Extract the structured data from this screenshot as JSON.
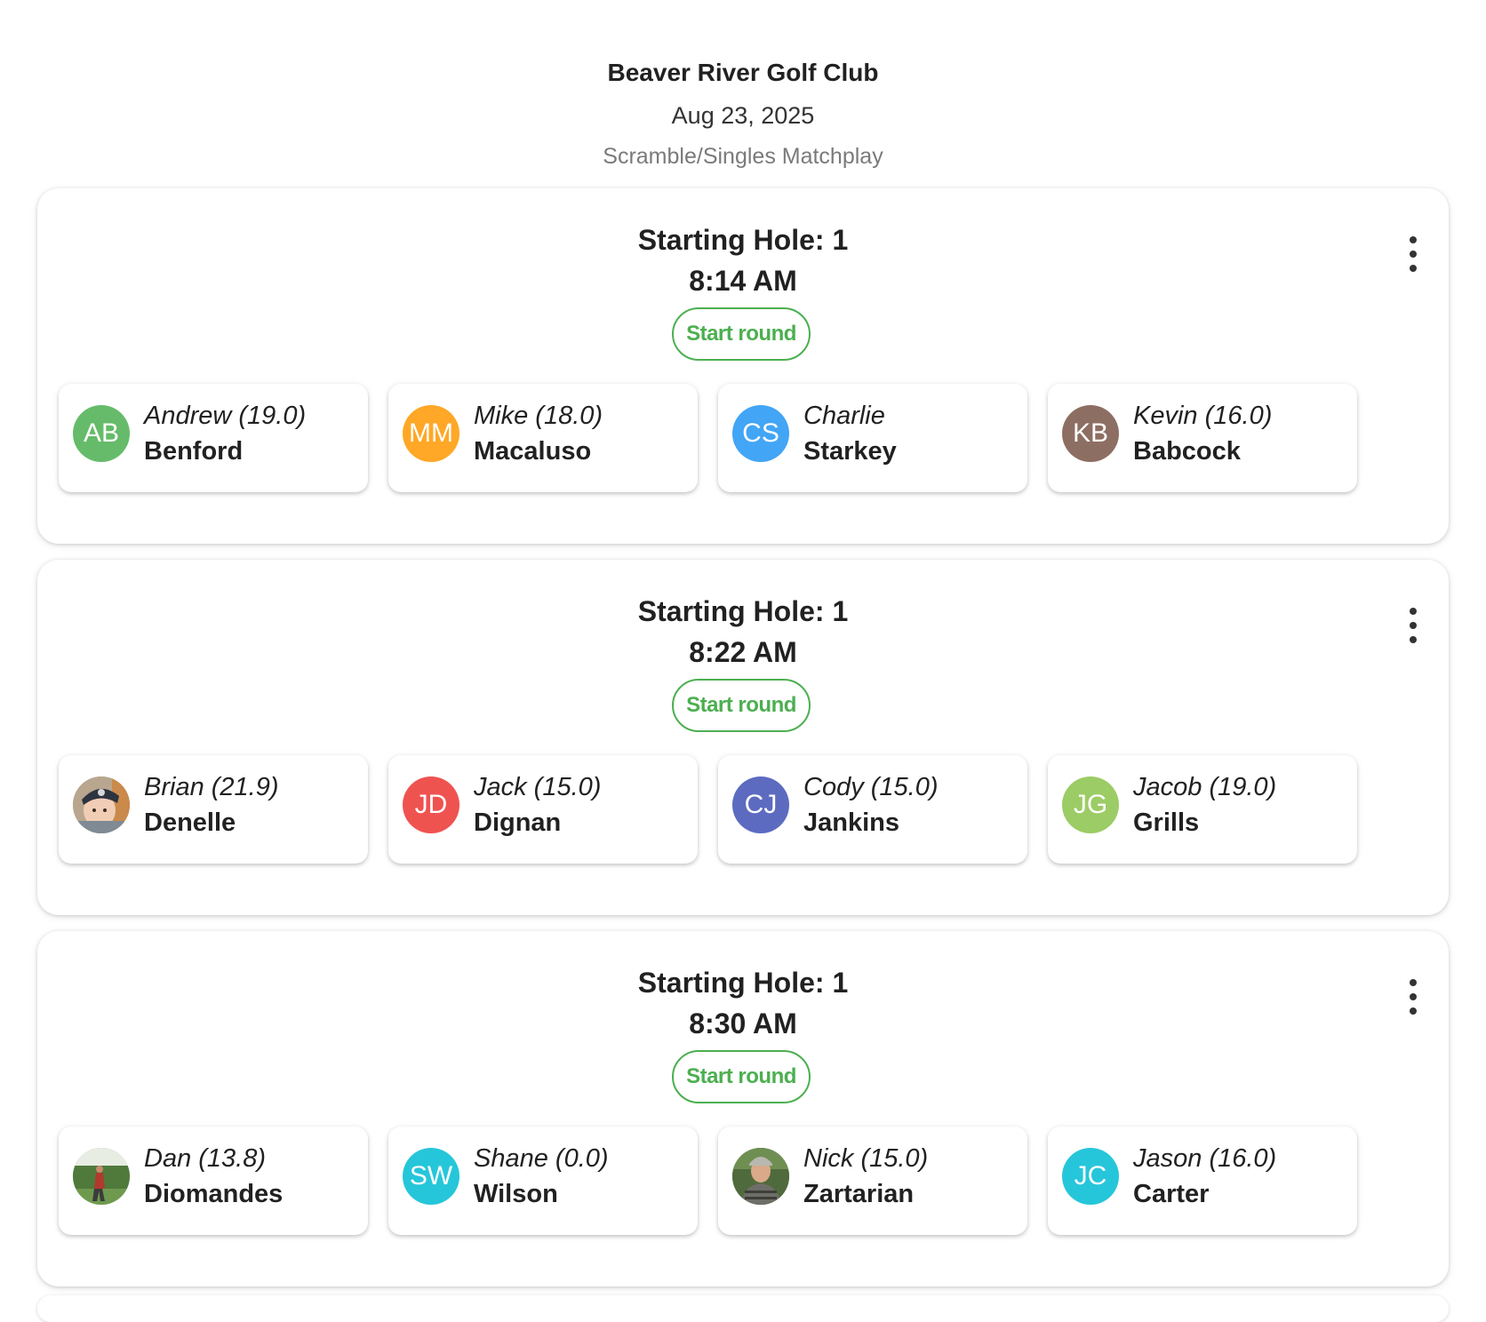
{
  "header": {
    "club": "Beaver River Golf Club",
    "date": "Aug 23, 2025",
    "format": "Scramble/Singles Matchplay"
  },
  "colors": {
    "accent": "#4caf50"
  },
  "groups": [
    {
      "hole": "Starting Hole: 1",
      "time": "8:14 AM",
      "start_label": "Start round",
      "menu_icon": "more-vert-icon",
      "players": [
        {
          "first": "Andrew (19.0)",
          "last": "Benford",
          "initials": "AB",
          "avatar_color": "#66bb6a",
          "photo": false
        },
        {
          "first": "Mike (18.0)",
          "last": "Macaluso",
          "initials": "MM",
          "avatar_color": "#ffa726",
          "photo": false
        },
        {
          "first": "Charlie",
          "last": "Starkey",
          "initials": "CS",
          "avatar_color": "#42a5f5",
          "photo": false
        },
        {
          "first": "Kevin (16.0)",
          "last": "Babcock",
          "initials": "KB",
          "avatar_color": "#8d6e63",
          "photo": false
        }
      ]
    },
    {
      "hole": "Starting Hole: 1",
      "time": "8:22 AM",
      "start_label": "Start round",
      "menu_icon": "more-vert-icon",
      "players": [
        {
          "first": "Brian (21.9)",
          "last": "Denelle",
          "initials": "",
          "avatar_color": "#b0a08c",
          "photo": "baby"
        },
        {
          "first": "Jack (15.0)",
          "last": "Dignan",
          "initials": "JD",
          "avatar_color": "#ef5350",
          "photo": false
        },
        {
          "first": "Cody (15.0)",
          "last": "Jankins",
          "initials": "CJ",
          "avatar_color": "#5c6bc0",
          "photo": false
        },
        {
          "first": "Jacob (19.0)",
          "last": "Grills",
          "initials": "JG",
          "avatar_color": "#9ccc65",
          "photo": false
        }
      ]
    },
    {
      "hole": "Starting Hole: 1",
      "time": "8:30 AM",
      "start_label": "Start round",
      "menu_icon": "more-vert-icon",
      "players": [
        {
          "first": "Dan (13.8)",
          "last": "Diomandes",
          "initials": "",
          "avatar_color": "#6d8a5a",
          "photo": "golfer"
        },
        {
          "first": "Shane (0.0)",
          "last": "Wilson",
          "initials": "SW",
          "avatar_color": "#26c6da",
          "photo": false
        },
        {
          "first": "Nick (15.0)",
          "last": "Zartarian",
          "initials": "",
          "avatar_color": "#5a6b4a",
          "photo": "man"
        },
        {
          "first": "Jason (16.0)",
          "last": "Carter",
          "initials": "JC",
          "avatar_color": "#26c6da",
          "photo": false
        }
      ]
    }
  ]
}
